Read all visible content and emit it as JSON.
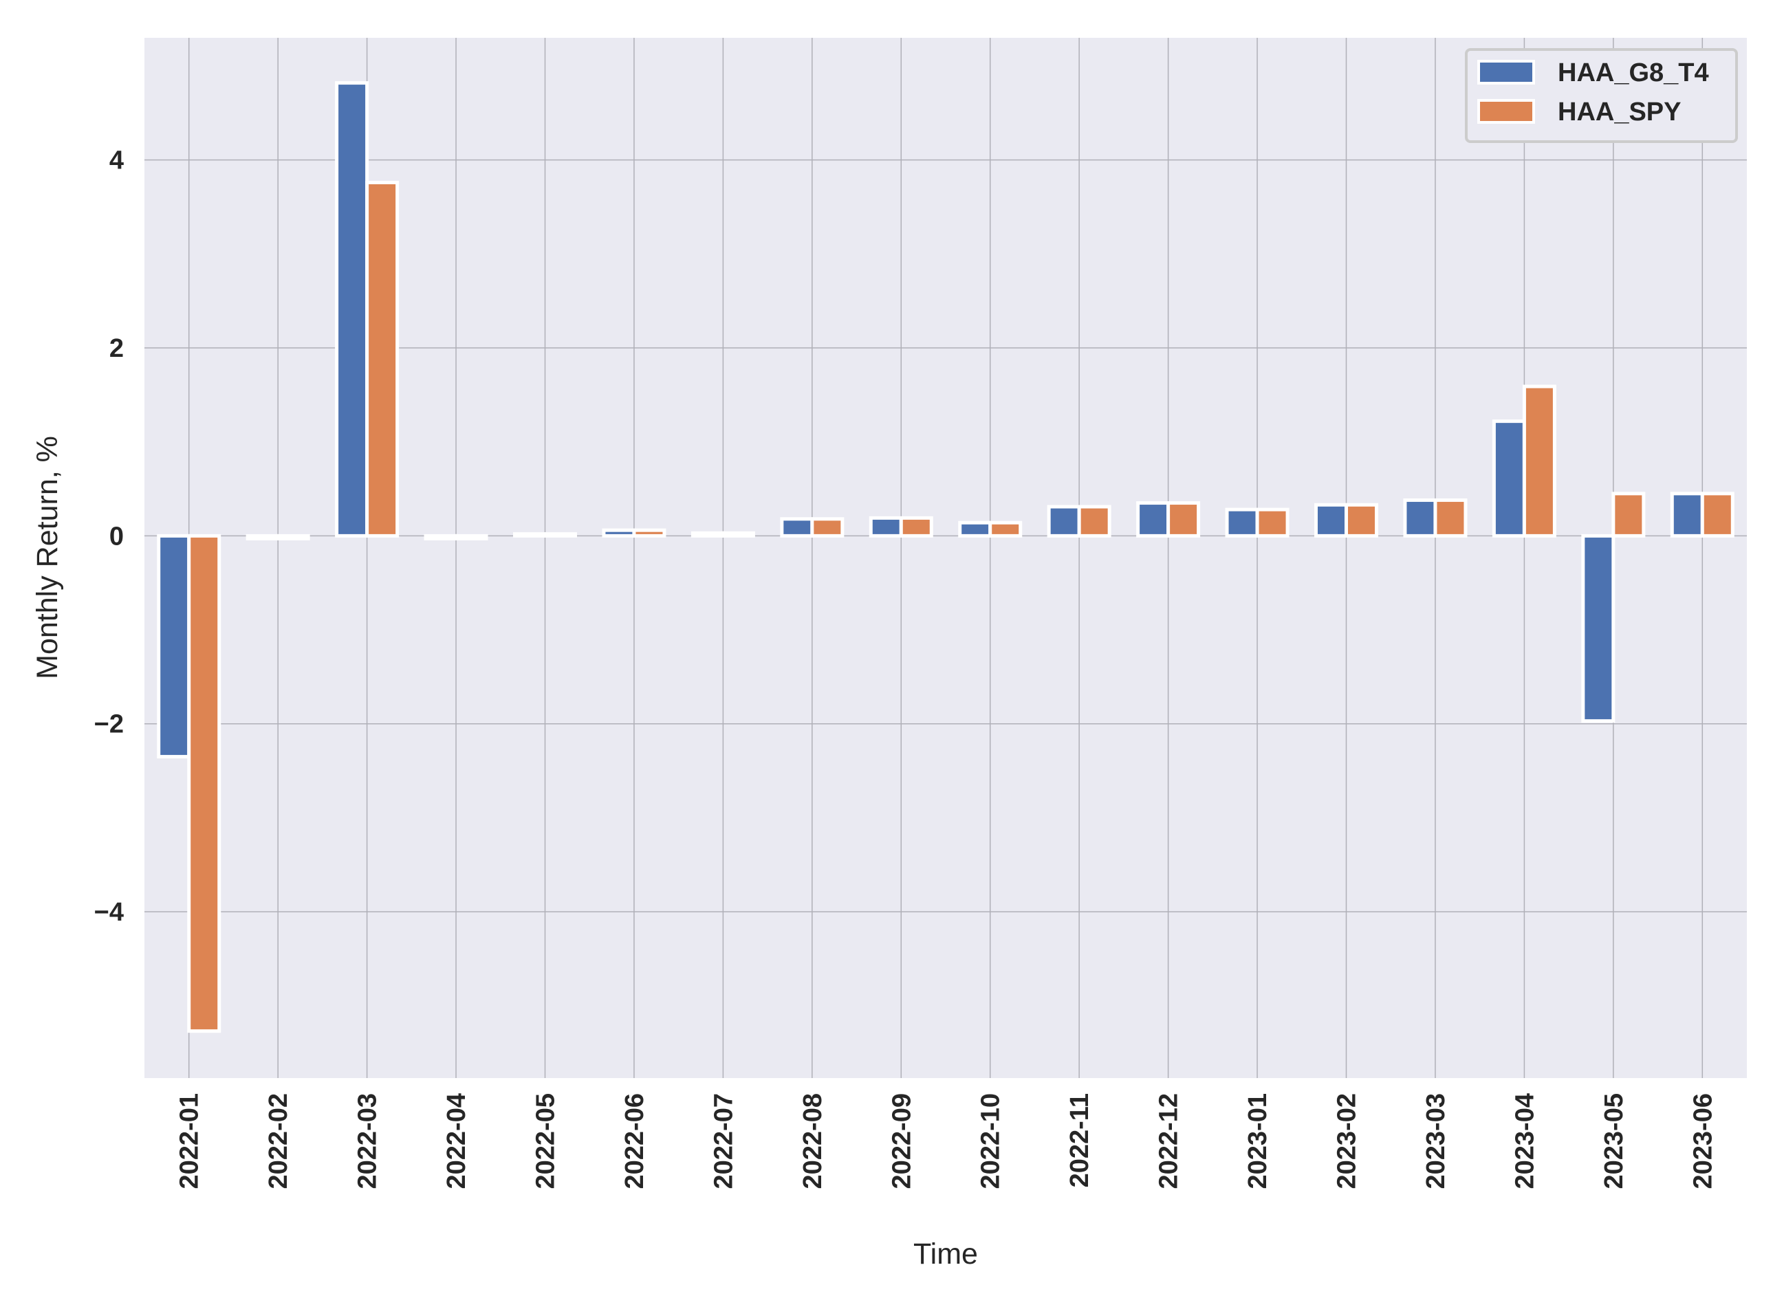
{
  "chart_data": {
    "type": "bar",
    "title": "",
    "xlabel": "Time",
    "ylabel": "Monthly Return, %",
    "categories": [
      "2022-01",
      "2022-02",
      "2022-03",
      "2022-04",
      "2022-05",
      "2022-06",
      "2022-07",
      "2022-08",
      "2022-09",
      "2022-10",
      "2022-11",
      "2022-12",
      "2023-01",
      "2023-02",
      "2023-03",
      "2023-04",
      "2023-05",
      "2023-06"
    ],
    "series": [
      {
        "name": "HAA_G8_T4",
        "color": "#4c72b0",
        "values": [
          -2.35,
          -0.03,
          4.82,
          -0.03,
          0.02,
          0.06,
          0.03,
          0.18,
          0.19,
          0.14,
          0.31,
          0.35,
          0.28,
          0.33,
          0.38,
          1.22,
          -1.97,
          0.45
        ]
      },
      {
        "name": "HAA_SPY",
        "color": "#dd8452",
        "values": [
          -5.27,
          -0.03,
          3.76,
          -0.03,
          0.02,
          0.06,
          0.03,
          0.18,
          0.19,
          0.14,
          0.31,
          0.35,
          0.28,
          0.33,
          0.38,
          1.59,
          0.45,
          0.45
        ]
      }
    ],
    "ylim": [
      -5.77,
      5.3
    ],
    "yticks": [
      -4,
      -2,
      0,
      2,
      4
    ],
    "ytick_labels": [
      "−4",
      "−2",
      "0",
      "2",
      "4"
    ],
    "grid": true,
    "legend": "top-right",
    "background": "#eaeaf2"
  }
}
